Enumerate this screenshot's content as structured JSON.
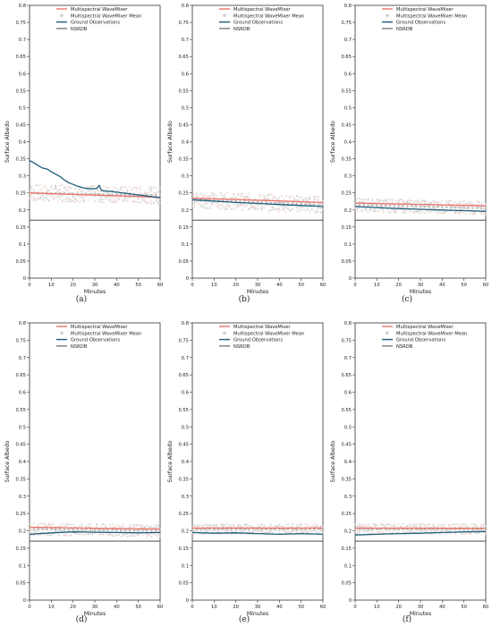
{
  "figure": {
    "panel_labels": [
      "(a)",
      "(b)",
      "(c)",
      "(d)",
      "(e)",
      "(f)"
    ]
  },
  "colors": {
    "wavemixer": "#e8756b",
    "mean": "#c9c9c9",
    "ground": "#1f5c7a",
    "nsrdb": "#333333"
  },
  "chart_data": [
    {
      "type": "line",
      "label": "(a)",
      "xlabel": "Minutes",
      "ylabel": "Surface Albedo",
      "xlim": [
        0,
        60
      ],
      "ylim": [
        0,
        0.8
      ],
      "xticks": [
        0,
        10,
        20,
        30,
        40,
        50,
        60
      ],
      "yticks": [
        0.0,
        0.05,
        0.1,
        0.15,
        0.2,
        0.25,
        0.3,
        0.35,
        0.4,
        0.45,
        0.5,
        0.55,
        0.6,
        0.65,
        0.7,
        0.75,
        0.8
      ],
      "legend": [
        "Multispectral WaveMixer",
        "Multispectral WaveMixer Mean",
        "Ground Observations",
        "NSRDB"
      ],
      "legend_position": "top-center",
      "grid": false,
      "band": {
        "center": [
          0.25,
          0.243
        ],
        "spread": 0.025
      },
      "series": [
        {
          "name": "Multispectral WaveMixer",
          "x": [
            0,
            60
          ],
          "y": [
            0.25,
            0.237
          ]
        },
        {
          "name": "Ground Observations",
          "x": [
            0,
            2,
            4,
            6,
            8,
            10,
            12,
            14,
            16,
            18,
            20,
            22,
            24,
            26,
            28,
            30,
            31,
            32,
            33,
            34,
            36,
            38,
            40,
            45,
            50,
            55,
            60
          ],
          "y": [
            0.345,
            0.338,
            0.33,
            0.323,
            0.32,
            0.312,
            0.305,
            0.298,
            0.288,
            0.28,
            0.275,
            0.27,
            0.266,
            0.263,
            0.262,
            0.262,
            0.264,
            0.272,
            0.258,
            0.256,
            0.255,
            0.254,
            0.252,
            0.248,
            0.244,
            0.24,
            0.236
          ]
        },
        {
          "name": "NSRDB",
          "x": [
            0,
            60
          ],
          "y": [
            0.17,
            0.17
          ]
        }
      ]
    },
    {
      "type": "line",
      "label": "(b)",
      "xlabel": "Minutes",
      "ylabel": "Surface Albedo",
      "xlim": [
        0,
        60
      ],
      "ylim": [
        0,
        0.8
      ],
      "xticks": [
        0,
        10,
        20,
        30,
        40,
        50,
        60
      ],
      "yticks": [
        0.0,
        0.05,
        0.1,
        0.15,
        0.2,
        0.25,
        0.3,
        0.35,
        0.4,
        0.45,
        0.5,
        0.55,
        0.6,
        0.65,
        0.7,
        0.75,
        0.8
      ],
      "legend": [
        "Multispectral WaveMixer",
        "Multispectral WaveMixer Mean",
        "Ground Observations",
        "NSRDB"
      ],
      "legend_position": "top-center",
      "grid": false,
      "band": {
        "center": [
          0.23,
          0.215
        ],
        "spread": 0.025
      },
      "series": [
        {
          "name": "Multispectral WaveMixer",
          "x": [
            0,
            60
          ],
          "y": [
            0.235,
            0.222
          ]
        },
        {
          "name": "Ground Observations",
          "x": [
            0,
            10,
            20,
            30,
            40,
            50,
            60
          ],
          "y": [
            0.23,
            0.226,
            0.222,
            0.219,
            0.216,
            0.213,
            0.21
          ]
        },
        {
          "name": "NSRDB",
          "x": [
            0,
            60
          ],
          "y": [
            0.17,
            0.17
          ]
        }
      ]
    },
    {
      "type": "line",
      "label": "(c)",
      "xlabel": "Minutes",
      "ylabel": "Surface Albedo",
      "xlim": [
        0,
        60
      ],
      "ylim": [
        0,
        0.8
      ],
      "xticks": [
        0,
        10,
        20,
        30,
        40,
        50,
        60
      ],
      "yticks": [
        0.0,
        0.05,
        0.1,
        0.15,
        0.2,
        0.25,
        0.3,
        0.35,
        0.4,
        0.45,
        0.5,
        0.55,
        0.6,
        0.65,
        0.7,
        0.75,
        0.8
      ],
      "legend": [
        "Multispectral WaveMixer",
        "Multispectral WaveMixer Mean",
        "Ground Observations",
        "NSRDB"
      ],
      "legend_position": "top-center",
      "grid": false,
      "band": {
        "center": [
          0.215,
          0.205
        ],
        "spread": 0.02
      },
      "series": [
        {
          "name": "Multispectral WaveMixer",
          "x": [
            0,
            60
          ],
          "y": [
            0.22,
            0.212
          ]
        },
        {
          "name": "Ground Observations",
          "x": [
            0,
            10,
            20,
            30,
            40,
            50,
            60
          ],
          "y": [
            0.21,
            0.207,
            0.204,
            0.202,
            0.2,
            0.198,
            0.196
          ]
        },
        {
          "name": "NSRDB",
          "x": [
            0,
            60
          ],
          "y": [
            0.17,
            0.17
          ]
        }
      ]
    },
    {
      "type": "line",
      "label": "(d)",
      "xlabel": "Minutes",
      "ylabel": "Surface Albedo",
      "xlim": [
        0,
        60
      ],
      "ylim": [
        0,
        0.8
      ],
      "xticks": [
        0,
        10,
        20,
        30,
        40,
        50,
        60
      ],
      "yticks": [
        0.0,
        0.05,
        0.1,
        0.15,
        0.2,
        0.25,
        0.3,
        0.35,
        0.4,
        0.45,
        0.5,
        0.55,
        0.6,
        0.65,
        0.7,
        0.75,
        0.8
      ],
      "legend": [
        "Multispectral WaveMixer",
        "Multispectral WaveMixer Mean",
        "Ground Observations",
        "NSRDB"
      ],
      "legend_position": "top-center",
      "grid": false,
      "band": {
        "center": [
          0.205,
          0.2
        ],
        "spread": 0.018
      },
      "series": [
        {
          "name": "Multispectral WaveMixer",
          "x": [
            0,
            60
          ],
          "y": [
            0.21,
            0.205
          ]
        },
        {
          "name": "Ground Observations",
          "x": [
            0,
            10,
            20,
            30,
            40,
            50,
            60
          ],
          "y": [
            0.19,
            0.194,
            0.197,
            0.196,
            0.195,
            0.194,
            0.195
          ]
        },
        {
          "name": "NSRDB",
          "x": [
            0,
            60
          ],
          "y": [
            0.17,
            0.17
          ]
        }
      ]
    },
    {
      "type": "line",
      "label": "(e)",
      "xlabel": "Minutes",
      "ylabel": "Surface Albedo",
      "xlim": [
        0,
        60
      ],
      "ylim": [
        0,
        0.8
      ],
      "xticks": [
        0,
        10,
        20,
        30,
        40,
        50,
        60
      ],
      "yticks": [
        0.0,
        0.05,
        0.1,
        0.15,
        0.2,
        0.25,
        0.3,
        0.35,
        0.4,
        0.45,
        0.5,
        0.55,
        0.6,
        0.65,
        0.7,
        0.75,
        0.8
      ],
      "legend": [
        "Multispectral WaveMixer",
        "Multispectral WaveMixer Mean",
        "Ground Observations",
        "NSRDB"
      ],
      "legend_position": "top-center",
      "grid": false,
      "band": {
        "center": [
          0.205,
          0.205
        ],
        "spread": 0.015
      },
      "series": [
        {
          "name": "Multispectral WaveMixer",
          "x": [
            0,
            60
          ],
          "y": [
            0.208,
            0.208
          ]
        },
        {
          "name": "Ground Observations",
          "x": [
            0,
            10,
            20,
            30,
            40,
            50,
            60
          ],
          "y": [
            0.195,
            0.193,
            0.194,
            0.192,
            0.19,
            0.192,
            0.19
          ]
        },
        {
          "name": "NSRDB",
          "x": [
            0,
            60
          ],
          "y": [
            0.17,
            0.17
          ]
        }
      ]
    },
    {
      "type": "line",
      "label": "(f)",
      "xlabel": "Minutes",
      "ylabel": "Surface Albedo",
      "xlim": [
        0,
        60
      ],
      "ylim": [
        0,
        0.8
      ],
      "xticks": [
        0,
        10,
        20,
        30,
        40,
        50,
        60
      ],
      "yticks": [
        0.0,
        0.05,
        0.1,
        0.15,
        0.2,
        0.25,
        0.3,
        0.35,
        0.4,
        0.45,
        0.5,
        0.55,
        0.6,
        0.65,
        0.7,
        0.75,
        0.8
      ],
      "legend": [
        "Multispectral WaveMixer",
        "Multispectral WaveMixer Mean",
        "Ground Observations",
        "NSRDB"
      ],
      "legend_position": "top-center",
      "grid": false,
      "band": {
        "center": [
          0.205,
          0.205
        ],
        "spread": 0.015
      },
      "series": [
        {
          "name": "Multispectral WaveMixer",
          "x": [
            0,
            60
          ],
          "y": [
            0.208,
            0.207
          ]
        },
        {
          "name": "Ground Observations",
          "x": [
            0,
            10,
            20,
            30,
            40,
            50,
            60
          ],
          "y": [
            0.188,
            0.19,
            0.192,
            0.193,
            0.195,
            0.197,
            0.198
          ]
        },
        {
          "name": "NSRDB",
          "x": [
            0,
            60
          ],
          "y": [
            0.17,
            0.17
          ]
        }
      ]
    }
  ]
}
